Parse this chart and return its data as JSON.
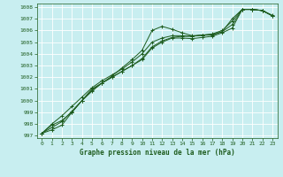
{
  "title": "Graphe pression niveau de la mer (hPa)",
  "bg_color": "#c8eef0",
  "grid_color": "#ffffff",
  "line_color": "#1e5c1e",
  "xlim": [
    -0.5,
    23.5
  ],
  "ylim": [
    996.8,
    1008.3
  ],
  "yticks": [
    997,
    998,
    999,
    1000,
    1001,
    1002,
    1003,
    1004,
    1005,
    1006,
    1007,
    1008
  ],
  "xticks": [
    0,
    1,
    2,
    3,
    4,
    5,
    6,
    7,
    8,
    9,
    10,
    11,
    12,
    13,
    14,
    15,
    16,
    17,
    18,
    19,
    20,
    21,
    22,
    23
  ],
  "series": [
    [
      997.2,
      997.9,
      998.3,
      999.0,
      1000.0,
      1000.8,
      1001.5,
      1002.1,
      1002.8,
      1003.5,
      1004.3,
      1006.0,
      1006.35,
      1006.1,
      1005.8,
      1005.55,
      1005.6,
      1005.6,
      1005.9,
      1007.0,
      1007.8,
      1007.8,
      1007.7,
      1007.3
    ],
    [
      997.2,
      998.0,
      998.7,
      999.5,
      1000.3,
      1001.1,
      1001.7,
      1002.2,
      1002.7,
      1003.3,
      1004.0,
      1005.0,
      1005.35,
      1005.55,
      1005.55,
      1005.5,
      1005.6,
      1005.7,
      1006.0,
      1006.8,
      1007.8,
      1007.8,
      1007.7,
      1007.25
    ],
    [
      997.2,
      997.7,
      998.2,
      999.1,
      1000.0,
      1000.9,
      1001.5,
      1002.0,
      1002.5,
      1003.0,
      1003.6,
      1004.6,
      1005.1,
      1005.4,
      1005.5,
      1005.5,
      1005.6,
      1005.65,
      1005.9,
      1006.5,
      1007.8,
      1007.8,
      1007.7,
      1007.25
    ],
    [
      997.2,
      997.5,
      997.9,
      999.0,
      1000.0,
      1001.0,
      1001.5,
      1002.0,
      1002.5,
      1003.0,
      1003.5,
      1004.5,
      1005.0,
      1005.35,
      1005.35,
      1005.3,
      1005.4,
      1005.5,
      1005.8,
      1006.2,
      1007.8,
      1007.8,
      1007.7,
      1007.25
    ]
  ]
}
